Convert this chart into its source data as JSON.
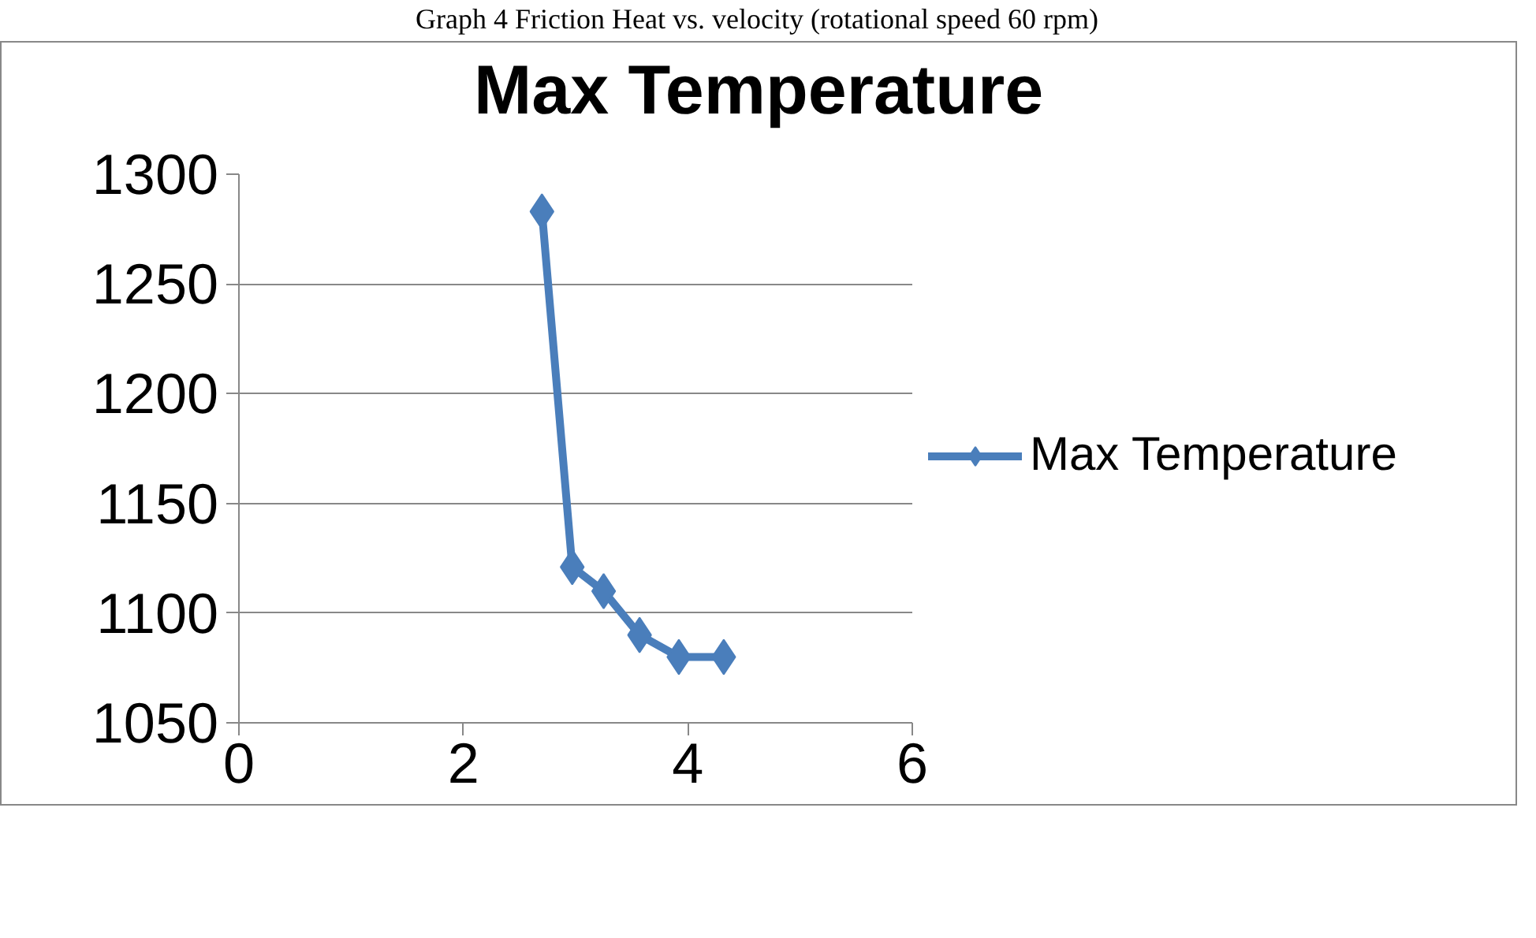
{
  "chart_data": {
    "type": "line",
    "title": "Max Temperature",
    "annotations": [
      "Graph 4 Friction Heat vs. velocity (rotational speed 60 rpm)"
    ],
    "x": [
      2.7,
      2.97,
      3.25,
      3.57,
      3.92,
      4.32
    ],
    "series": [
      {
        "name": "Max Temperature",
        "color": "#4a7ebb",
        "values": [
          1283,
          1121,
          1110,
          1090,
          1080,
          1080
        ]
      }
    ],
    "xlim": [
      0,
      6
    ],
    "xticks": [
      0,
      2,
      4,
      6
    ],
    "ylim": [
      1050,
      1300
    ],
    "yticks": [
      1050,
      1100,
      1150,
      1200,
      1250,
      1300
    ],
    "grid": "y",
    "legend": "right",
    "marker": "diamond",
    "line_style": "solid"
  }
}
